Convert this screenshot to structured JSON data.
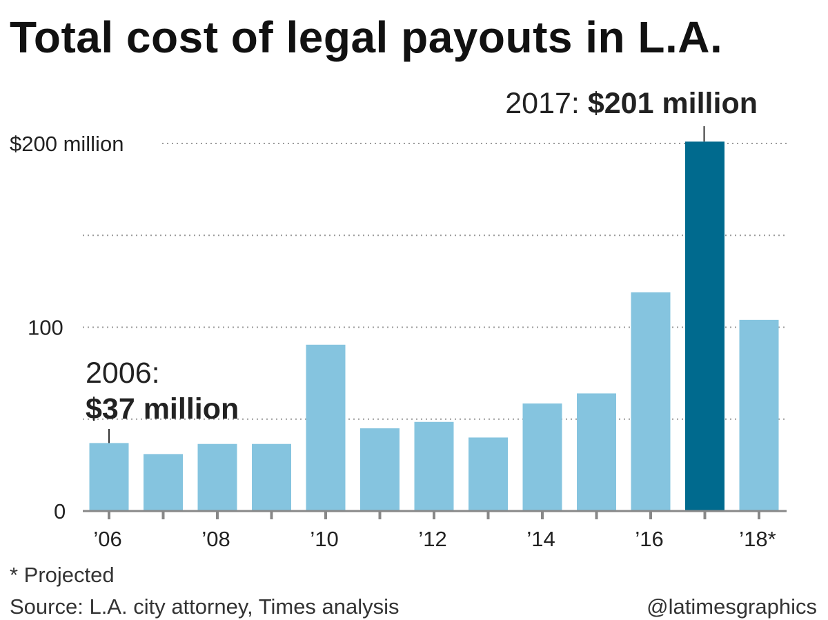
{
  "chart_data": {
    "type": "bar",
    "title": "Total cost of legal payouts in L.A.",
    "x": [
      2006,
      2007,
      2008,
      2009,
      2010,
      2011,
      2012,
      2013,
      2014,
      2015,
      2016,
      2017,
      2018
    ],
    "tick_labels": [
      "’06",
      "’08",
      "’10",
      "’12",
      "’14",
      "’16",
      "’18*"
    ],
    "tick_years": [
      2006,
      2008,
      2010,
      2012,
      2014,
      2016,
      2018
    ],
    "values": [
      37,
      31,
      36.5,
      36.5,
      90.5,
      45,
      48.5,
      40,
      58.5,
      64,
      119,
      201,
      104
    ],
    "highlight_index": 11,
    "colors": {
      "bar": "#85c4df",
      "highlight": "#006a8e",
      "grid": "#9a9a9a",
      "axis": "#888888"
    },
    "ylim": [
      0,
      200
    ],
    "yticks": [
      0,
      100,
      200
    ],
    "ytick_labels": [
      "0",
      "100",
      "$200 million"
    ],
    "gridlines": [
      50,
      100,
      150,
      200
    ],
    "annotations": [
      {
        "year_label": "2006:",
        "value_label": "$37 million",
        "index": 0
      },
      {
        "year_label": "2017:",
        "value_label": "$201 million",
        "index": 11
      }
    ]
  },
  "footnote": "* Projected",
  "source": "Source: L.A. city attorney, Times analysis",
  "credit": "@latimesgraphics"
}
